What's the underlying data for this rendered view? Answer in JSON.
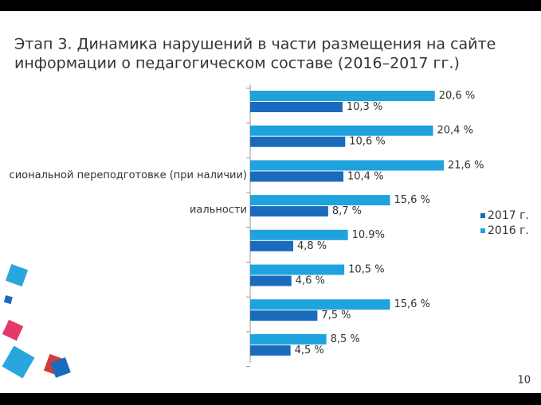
{
  "chart_data": {
    "type": "bar",
    "orientation": "horizontal",
    "title": [
      "Этап 3. Динамика нарушений в части размещения на сайте",
      "информации о педагогическом составе (2016–2017 гг.)"
    ],
    "categories": [
      null,
      null,
      "сиональной переподготовке (при наличии)",
      "иальности",
      null,
      null,
      null,
      null
    ],
    "series": [
      {
        "name": "2016 г.",
        "color": "#1ea3dd",
        "values": [
          20.6,
          20.4,
          21.6,
          15.6,
          10.9,
          10.5,
          15.6,
          8.5
        ],
        "value_labels": [
          "20,6 %",
          "20,4 %",
          "21,6 %",
          "15,6 %",
          "10.9%",
          "10,5 %",
          "15,6 %",
          "8,5 %"
        ]
      },
      {
        "name": "2017 г.",
        "color": "#1b6bbd",
        "values": [
          10.3,
          10.6,
          10.4,
          8.7,
          4.8,
          4.6,
          7.5,
          4.5
        ],
        "value_labels": [
          "10,3 %",
          "10,6 %",
          "10,4 %",
          "8,7 %",
          "4,8 %",
          "4,6 %",
          "7,5 %",
          "4,5 %"
        ]
      }
    ],
    "legend_order": [
      1,
      0
    ]
  },
  "page_number": "10"
}
